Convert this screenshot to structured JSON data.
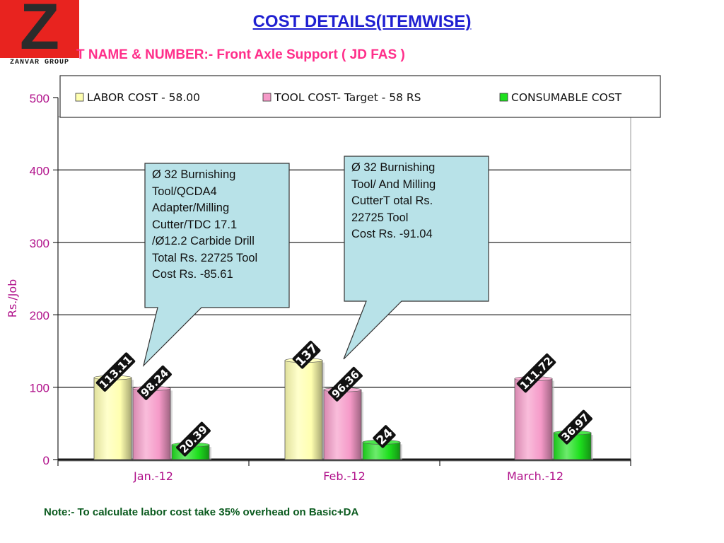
{
  "header": {
    "title": "COST DETAILS(ITEMWISE)",
    "part_name": "T NAME & NUMBER:-  Front Axle Support  ( JD FAS )"
  },
  "logo": {
    "letter": "Z",
    "text": "ZANVAR GROUP"
  },
  "chart_data": {
    "type": "bar",
    "categories": [
      "Jan.-12",
      "Feb.-12",
      "March.-12"
    ],
    "series": [
      {
        "name": "LABOR COST - 58.00",
        "values": [
          113.11,
          137,
          null
        ],
        "labels": [
          "113.11",
          "137",
          ""
        ],
        "color": "#ffffb0"
      },
      {
        "name": "TOOL COST- Target -  58 RS",
        "values": [
          98.24,
          96.36,
          111.72
        ],
        "labels": [
          "98.24",
          "96.36",
          "111.72"
        ],
        "color": "#f59ac8"
      },
      {
        "name": "CONSUMABLE COST",
        "values": [
          20.39,
          24,
          36.97
        ],
        "labels": [
          "20.39",
          "24",
          "36.97"
        ],
        "color": "#1ee01e"
      }
    ],
    "ylabel": "Rs./Job",
    "xlabel": "",
    "ylim": [
      0,
      500
    ],
    "yticks": [
      "0",
      "100",
      "200",
      "300",
      "400",
      "500"
    ],
    "grid": true,
    "legend_position": "top"
  },
  "callouts": [
    {
      "text": "Ø 32 Burnishing\nTool/QCDA4\nAdapter/Milling\nCutter/TDC 17.1\n/Ø12.2 Carbide Drill\nTotal Rs. 22725 Tool\nCost Rs. -85.61",
      "fill": "#b8e2e8"
    },
    {
      "text": "Ø 32 Burnishing\nTool/ And Milling\nCutterT otal Rs.\n22725 Tool\nCost Rs. -91.04",
      "fill": "#b8e2e8"
    }
  ],
  "footer": {
    "note": "Note:- To calculate labor cost take 35% overhead on Basic+DA"
  },
  "colors": {
    "title": "#1f1fd1",
    "part_name": "#ff2e8a",
    "axis_text": "#b0108a",
    "note": "#0a5a1e"
  }
}
